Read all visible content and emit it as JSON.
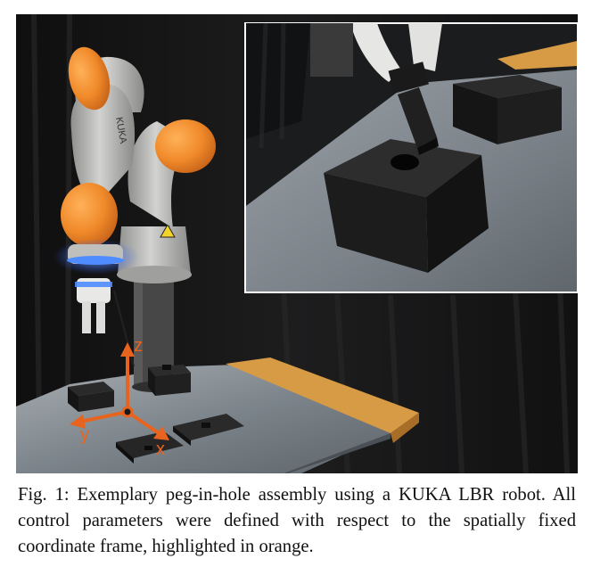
{
  "figure": {
    "axis_labels": {
      "z": "z",
      "y": "y",
      "x": "x"
    },
    "colors": {
      "frame_orange": "#e8641e",
      "robot_orange": "#f08a2a",
      "robot_grey": "#b8b9b6",
      "led_blue": "#3f7fff",
      "table_wood": "#d79a45",
      "table_metal": "#8e969d",
      "curtain": "#1a1a1a"
    },
    "icons": [
      "kuka-robot-arm",
      "peg-in-hole-block",
      "coordinate-frame",
      "inset-zoom-photo"
    ]
  },
  "caption": {
    "label": "Fig. 1:",
    "text": " Exemplary peg-in-hole assembly using a KUKA LBR robot. All control parameters were defined with respect to the spatially fixed coordinate frame, highlighted in orange."
  }
}
